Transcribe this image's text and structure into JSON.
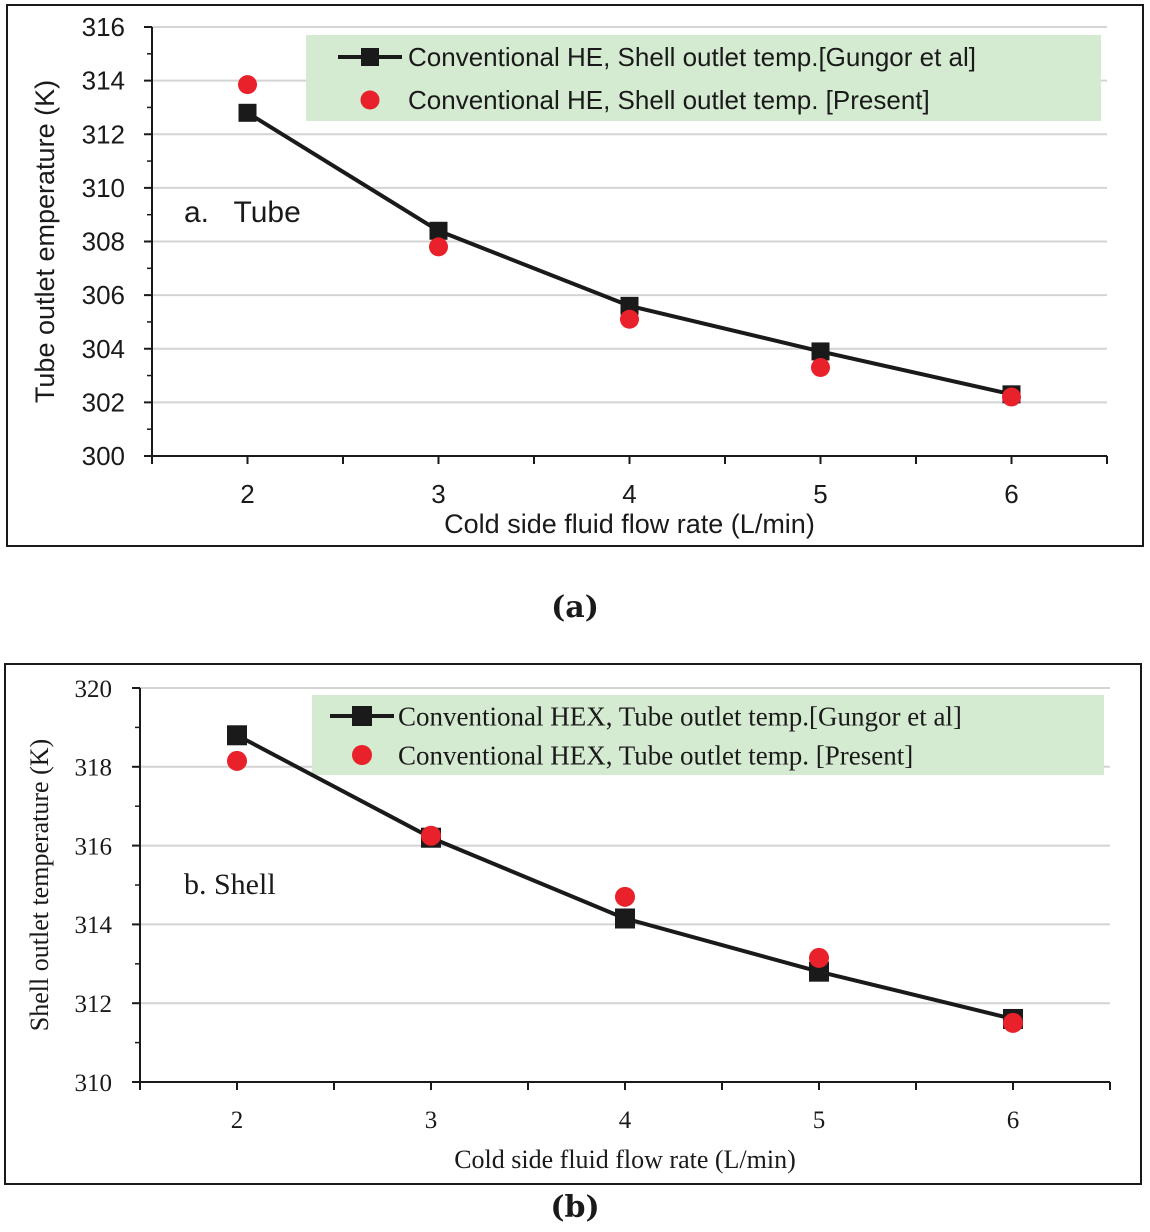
{
  "colors": {
    "line": "#1a1a1a",
    "present": "#e8212a",
    "grid": "#d4d4d4",
    "legend_bg": "#d5ebd1"
  },
  "chart_data": [
    {
      "type": "line",
      "panel_label": "(a)",
      "annotation": "a.   Tube",
      "title": "",
      "xlabel": "Cold side fluid flow rate (L/min)",
      "ylabel": "Tube outlet emperature (K)",
      "x": [
        2,
        3,
        4,
        5,
        6
      ],
      "x_ticks": [
        2,
        3,
        4,
        5,
        6
      ],
      "y_ticks": [
        300,
        302,
        304,
        306,
        308,
        310,
        312,
        314,
        316
      ],
      "ylim": [
        300,
        316
      ],
      "grid": true,
      "legend_position": "top-right",
      "series": [
        {
          "name": "Conventional HE, Shell outlet temp.[Gungor et al]",
          "marker": "square",
          "line": true,
          "values": [
            312.8,
            308.4,
            305.6,
            303.9,
            302.3
          ]
        },
        {
          "name": "Conventional HE, Shell outlet temp. [Present]",
          "marker": "circle",
          "line": false,
          "values": [
            313.85,
            307.8,
            305.1,
            303.3,
            302.2
          ]
        }
      ]
    },
    {
      "type": "line",
      "panel_label": "(b)",
      "annotation": "b. Shell",
      "title": "",
      "xlabel": "Cold side fluid flow rate (L/min)",
      "ylabel": "Shell outlet temperature (K)",
      "x": [
        2,
        3,
        4,
        5,
        6
      ],
      "x_ticks": [
        2,
        3,
        4,
        5,
        6
      ],
      "y_ticks": [
        310,
        312,
        314,
        316,
        318,
        320
      ],
      "ylim": [
        310,
        320
      ],
      "grid": true,
      "legend_position": "top-right",
      "series": [
        {
          "name": "Conventional HEX, Tube outlet temp.[Gungor et al]",
          "marker": "square",
          "line": true,
          "values": [
            318.8,
            316.2,
            314.15,
            312.8,
            311.6
          ]
        },
        {
          "name": "Conventional HEX, Tube outlet temp. [Present]",
          "marker": "circle",
          "line": false,
          "values": [
            318.15,
            316.25,
            314.7,
            313.15,
            311.5
          ]
        }
      ]
    }
  ]
}
